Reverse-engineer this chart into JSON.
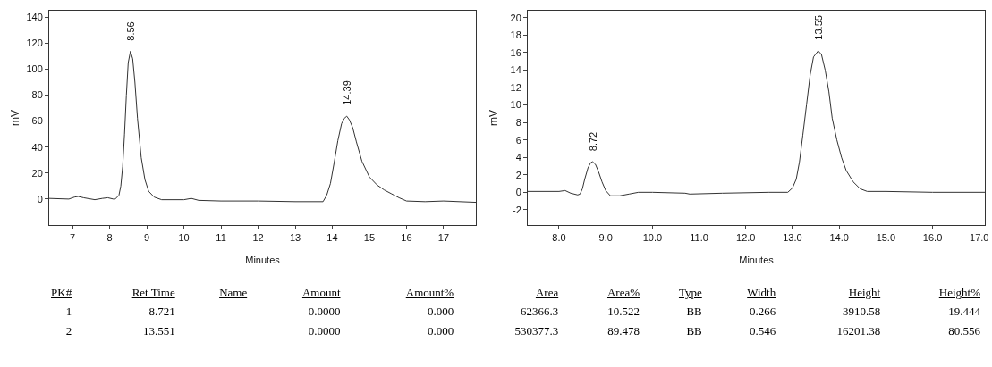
{
  "chart_data": [
    {
      "type": "line",
      "xlabel": "Minutes",
      "ylabel": "mV",
      "grid": false,
      "marker": "none",
      "line_style": "solid",
      "xlim": [
        6.37,
        17.87
      ],
      "xticks": [
        7,
        8,
        9,
        10,
        11,
        12,
        13,
        14,
        15,
        16,
        17
      ],
      "ylim": [
        -20,
        145
      ],
      "yticks": [
        0,
        20,
        40,
        60,
        80,
        100,
        120,
        140
      ],
      "series": [
        {
          "color": "#333333",
          "x": [
            6.37,
            6.9,
            7.05,
            7.15,
            7.3,
            7.6,
            7.8,
            7.95,
            8.1,
            8.15,
            8.25,
            8.3,
            8.35,
            8.4,
            8.45,
            8.5,
            8.56,
            8.62,
            8.68,
            8.75,
            8.85,
            8.95,
            9.05,
            9.2,
            9.4,
            10.0,
            10.2,
            10.4,
            11.0,
            12.0,
            13.0,
            13.75,
            13.85,
            13.95,
            14.05,
            14.15,
            14.25,
            14.32,
            14.39,
            14.46,
            14.55,
            14.65,
            14.8,
            15.0,
            15.2,
            15.4,
            15.6,
            15.8,
            16.0,
            16.5,
            17.0,
            17.87
          ],
          "values": [
            0.5,
            0,
            1.5,
            2,
            1,
            -0.5,
            0.5,
            1,
            0,
            0,
            3,
            10,
            25,
            50,
            80,
            105,
            113.8,
            108,
            90,
            62,
            32,
            15,
            6,
            1.5,
            -0.5,
            -0.5,
            0.5,
            -1,
            -1.5,
            -1.5,
            -2,
            -2,
            3,
            12,
            28,
            45,
            58,
            62,
            63.8,
            61,
            55,
            44,
            29,
            17,
            11,
            7,
            4,
            1,
            -1.5,
            -2,
            -1.5,
            -2.5
          ]
        }
      ],
      "annotations": [
        {
          "text": "8.56",
          "x": 8.56,
          "y": 113.8
        },
        {
          "text": "14.39",
          "x": 14.39,
          "y": 63.8
        }
      ]
    },
    {
      "type": "line",
      "xlabel": "Minutes",
      "ylabel": "mV",
      "grid": false,
      "marker": "none",
      "line_style": "solid",
      "xlim": [
        7.33,
        17.12
      ],
      "xticks": [
        {
          "value": 8,
          "label": "8.0"
        },
        {
          "value": 9,
          "label": "9.0"
        },
        {
          "value": 10,
          "label": "10.0"
        },
        {
          "value": 11,
          "label": "11.0"
        },
        {
          "value": 12,
          "label": "12.0"
        },
        {
          "value": 13,
          "label": "13.0"
        },
        {
          "value": 14,
          "label": "14.0"
        },
        {
          "value": 15,
          "label": "15.0"
        },
        {
          "value": 16,
          "label": "16.0"
        },
        {
          "value": 17,
          "label": "17.0"
        }
      ],
      "ylim": [
        -3.75,
        20.8
      ],
      "yticks": [
        -2,
        0,
        2,
        4,
        6,
        8,
        10,
        12,
        14,
        16,
        18,
        20
      ],
      "series": [
        {
          "color": "#333333",
          "x": [
            7.33,
            8.0,
            8.13,
            8.25,
            8.4,
            8.45,
            8.5,
            8.55,
            8.62,
            8.68,
            8.72,
            8.78,
            8.85,
            8.92,
            9.0,
            9.1,
            9.3,
            9.5,
            9.7,
            10.0,
            10.7,
            10.8,
            11.5,
            12.5,
            12.9,
            13.0,
            13.08,
            13.15,
            13.22,
            13.3,
            13.38,
            13.45,
            13.55,
            13.62,
            13.7,
            13.78,
            13.85,
            13.95,
            14.05,
            14.15,
            14.3,
            14.45,
            14.6,
            15.0,
            16.0,
            17.12
          ],
          "values": [
            0.1,
            0.1,
            0.2,
            -0.1,
            -0.3,
            -0.2,
            0.4,
            1.5,
            2.8,
            3.4,
            3.5,
            3.2,
            2.3,
            1.2,
            0.2,
            -0.4,
            -0.4,
            -0.2,
            0,
            0,
            -0.1,
            -0.2,
            -0.1,
            0,
            0,
            0.5,
            1.5,
            3.5,
            6.5,
            10,
            13.5,
            15.5,
            16.2,
            15.8,
            14,
            11.5,
            8.5,
            6,
            4,
            2.5,
            1.2,
            0.4,
            0.1,
            0.1,
            0,
            0
          ]
        }
      ],
      "annotations": [
        {
          "text": "8.72",
          "x": 8.72,
          "y": 3.5
        },
        {
          "text": "13.55",
          "x": 13.55,
          "y": 16.2
        }
      ]
    },
    {
      "type": "other",
      "annotations": [
        "PK#",
        "Ret Time",
        "Name",
        "Amount",
        "Amount%",
        "Area",
        "Area%",
        "Type",
        "Width",
        "Height",
        "Height%",
        "1",
        "8.721",
        null,
        "0.0000",
        "0.000",
        "62366.3",
        "10.522",
        "BB",
        "0.266",
        "3910.58",
        "19.444",
        "2",
        "13.551",
        null,
        "0.0000",
        "0.000",
        "530377.3",
        "89.478",
        "BB",
        "0.546",
        "16201.38",
        "80.556"
      ]
    }
  ]
}
